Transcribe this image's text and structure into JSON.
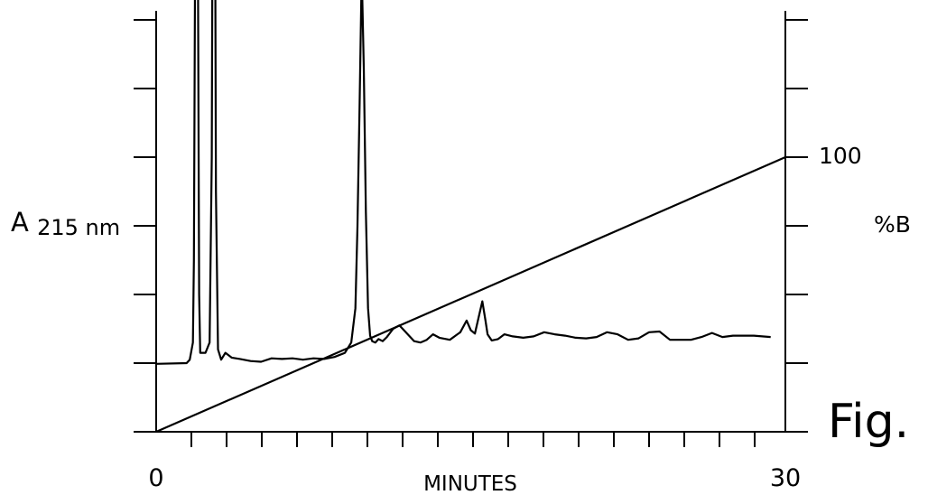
{
  "chart_data": {
    "type": "line",
    "figure_label": "Fig.",
    "xlabel": "MINUTES",
    "ylabel_left": "A",
    "ylabel_left_sub": "215 nm",
    "ylabel_right": "%B",
    "x_tick_labels": [
      "0",
      "30"
    ],
    "right_tick_label": "100",
    "xlim": [
      0,
      30
    ],
    "right_ylim": [
      0,
      100
    ],
    "grid": false,
    "legend": "none",
    "series": [
      {
        "axis": "left",
        "x": [
          0,
          1.45,
          1.6,
          1.75,
          1.8,
          1.85,
          1.9,
          1.95,
          2.0,
          2.05,
          2.1,
          2.35,
          2.55,
          2.65,
          2.72,
          2.78,
          2.85,
          2.95,
          3.1,
          3.3,
          3.6,
          4.0,
          4.5,
          5.0,
          5.5,
          6.0,
          6.5,
          7.0,
          7.5,
          8.0,
          8.5,
          9.0,
          9.3,
          9.5,
          9.6,
          9.7,
          9.8,
          9.9,
          10.0,
          10.1,
          10.2,
          10.3,
          10.45,
          10.6,
          10.8,
          11.0,
          11.3,
          11.6,
          11.9,
          12.3,
          12.6,
          12.9,
          13.2,
          13.5,
          14.0,
          14.5,
          14.8,
          15.0,
          15.2,
          15.4,
          15.55,
          15.7,
          15.8,
          16.0,
          16.3,
          16.6,
          17.0,
          17.5,
          18.0,
          18.5,
          19.0,
          19.5,
          20.0,
          20.5,
          21.0,
          21.5,
          22.0,
          22.5,
          23.0,
          23.5,
          24.0,
          24.5,
          25.0,
          25.5,
          26.0,
          26.5,
          27.0,
          27.5,
          28.0,
          28.5,
          29.3
        ],
        "y": [
          0.99,
          1.0,
          1.05,
          1.3,
          2.5,
          6.5,
          11.0,
          11.0,
          6.0,
          2.0,
          1.15,
          1.15,
          1.3,
          4.0,
          11.0,
          10.8,
          3.5,
          1.2,
          1.05,
          1.15,
          1.08,
          1.06,
          1.03,
          1.02,
          1.07,
          1.06,
          1.07,
          1.05,
          1.07,
          1.06,
          1.09,
          1.15,
          1.3,
          1.8,
          3.0,
          4.8,
          6.7,
          5.3,
          3.2,
          1.8,
          1.4,
          1.32,
          1.3,
          1.35,
          1.32,
          1.38,
          1.5,
          1.55,
          1.45,
          1.32,
          1.3,
          1.34,
          1.42,
          1.37,
          1.34,
          1.45,
          1.62,
          1.48,
          1.43,
          1.7,
          1.9,
          1.62,
          1.42,
          1.33,
          1.35,
          1.42,
          1.39,
          1.37,
          1.39,
          1.45,
          1.42,
          1.4,
          1.37,
          1.36,
          1.38,
          1.45,
          1.42,
          1.34,
          1.36,
          1.45,
          1.46,
          1.34,
          1.34,
          1.34,
          1.38,
          1.44,
          1.38,
          1.4,
          1.4,
          1.4,
          1.38
        ]
      },
      {
        "axis": "right",
        "x": [
          0,
          30
        ],
        "y": [
          0,
          100
        ]
      }
    ]
  }
}
